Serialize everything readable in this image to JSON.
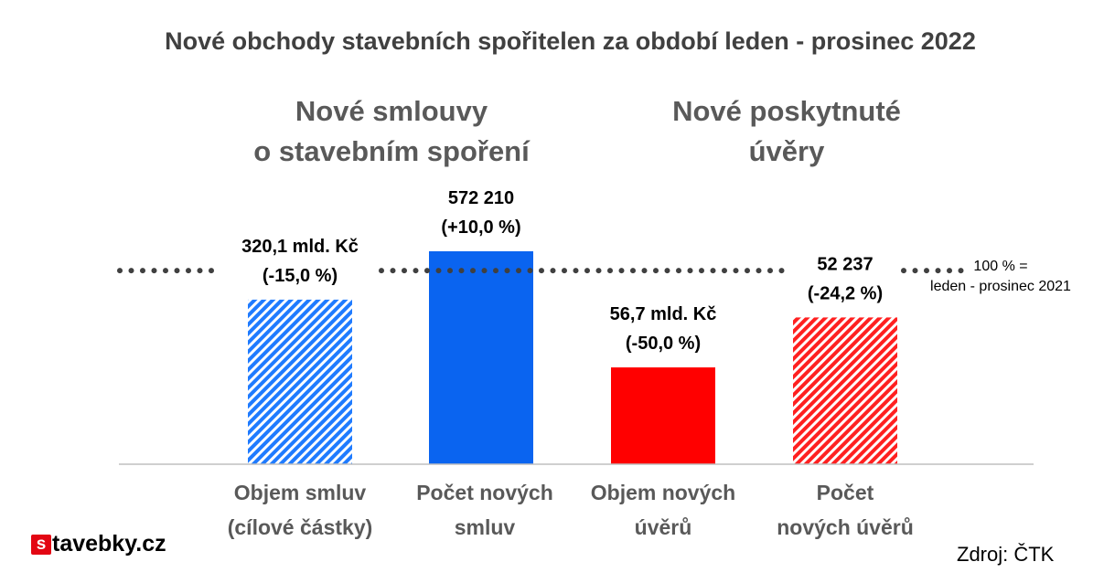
{
  "chart_data": {
    "type": "bar",
    "title": "Nové obchody stavebních spořitelen za období leden - prosinec 2022",
    "groups": [
      {
        "lines": [
          "Nové smlouvy",
          "o stavebním spoření"
        ]
      },
      {
        "lines": [
          "Nové poskytnuté",
          "úvěry"
        ]
      }
    ],
    "categories": [
      [
        "Objem smluv",
        "(cílové částky)"
      ],
      [
        "Počet  nových",
        "smluv"
      ],
      [
        "Objem nových",
        "úvěrů"
      ],
      [
        "Počet",
        "nových úvěrů"
      ]
    ],
    "values": [
      85.0,
      110.0,
      50.0,
      75.8
    ],
    "units": "% of reference period",
    "data_labels": [
      [
        "320,1 mld. Kč",
        "(-15,0 %)"
      ],
      [
        "572 210",
        "(+10,0 %)"
      ],
      [
        "56,7 mld. Kč",
        "(-50,0 %)"
      ],
      [
        "52 237",
        "(-24,2 %)"
      ]
    ],
    "bar_colors": [
      "#1f7bff",
      "#0a64f0",
      "#ff0000",
      "#ff2020"
    ],
    "bar_patterns": [
      "hatch",
      "solid",
      "solid",
      "hatch"
    ],
    "reference_line": {
      "value": 100,
      "style": "dotted",
      "label": [
        "100 % =",
        "leden - prosinec 2021"
      ]
    },
    "ylim": [
      0,
      118
    ],
    "grid": false,
    "legend": "none"
  },
  "brand": {
    "s": "s",
    "rest": "tavebky.cz"
  },
  "source": "Zdroj: ČTK"
}
